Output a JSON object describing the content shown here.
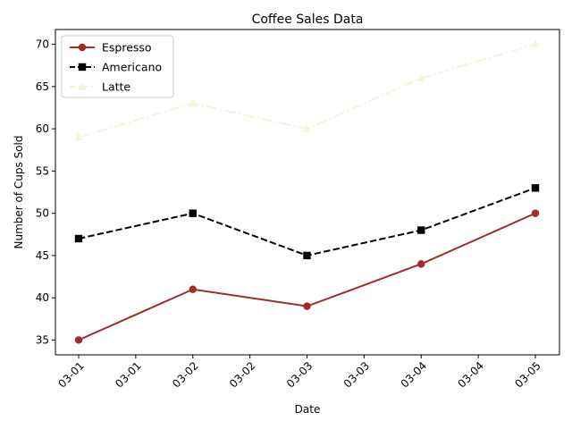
{
  "chart_data": {
    "type": "line",
    "title": "Coffee Sales Data",
    "xlabel": "Date",
    "ylabel": "Number of Cups Sold",
    "x": [
      "03-01",
      "03-02",
      "03-03",
      "03-04",
      "03-05"
    ],
    "x_tick_labels": [
      "03-01",
      "03-01",
      "03-02",
      "03-02",
      "03-03",
      "03-03",
      "03-04",
      "03-04",
      "03-05"
    ],
    "y_ticks": [
      35,
      40,
      45,
      50,
      55,
      60,
      65,
      70
    ],
    "ylim": [
      33.25,
      71.75
    ],
    "grid": false,
    "legend_position": "upper left",
    "series": [
      {
        "name": "Espresso",
        "values": [
          35,
          41,
          39,
          44,
          50
        ],
        "color": "#a52a2a",
        "linestyle": "solid",
        "marker": "circle"
      },
      {
        "name": "Americano",
        "values": [
          47,
          50,
          45,
          48,
          53
        ],
        "color": "#000000",
        "linestyle": "dashed",
        "marker": "square"
      },
      {
        "name": "Latte",
        "values": [
          59,
          63,
          60,
          66,
          70
        ],
        "color": "#f5f5dc",
        "linestyle": "dashdot",
        "marker": "triangle"
      }
    ]
  }
}
